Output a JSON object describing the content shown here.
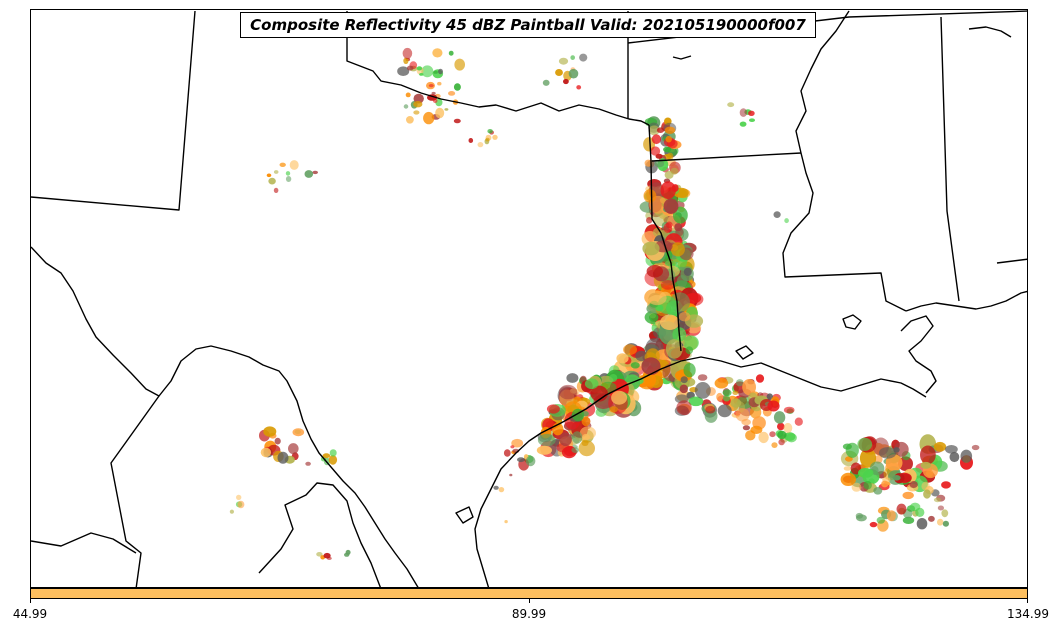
{
  "title": "Composite Reflectivity 45 dBZ Paintball Valid: 202105190000f007",
  "colorbar": {
    "color": "#fdbf5f",
    "ticks": [
      "44.99",
      "89.99",
      "134.99"
    ]
  },
  "colors": {
    "background": "#ffffff",
    "boundary": "#000000"
  },
  "paintball_palette": [
    "#e8191c",
    "#c01515",
    "#fb8c00",
    "#ff9f3f",
    "#fdbf5f",
    "#d99a00",
    "#4dd24d",
    "#33b033",
    "#5f9e5f",
    "#b3b34d",
    "#a63c3c",
    "#5a5a5a"
  ]
}
